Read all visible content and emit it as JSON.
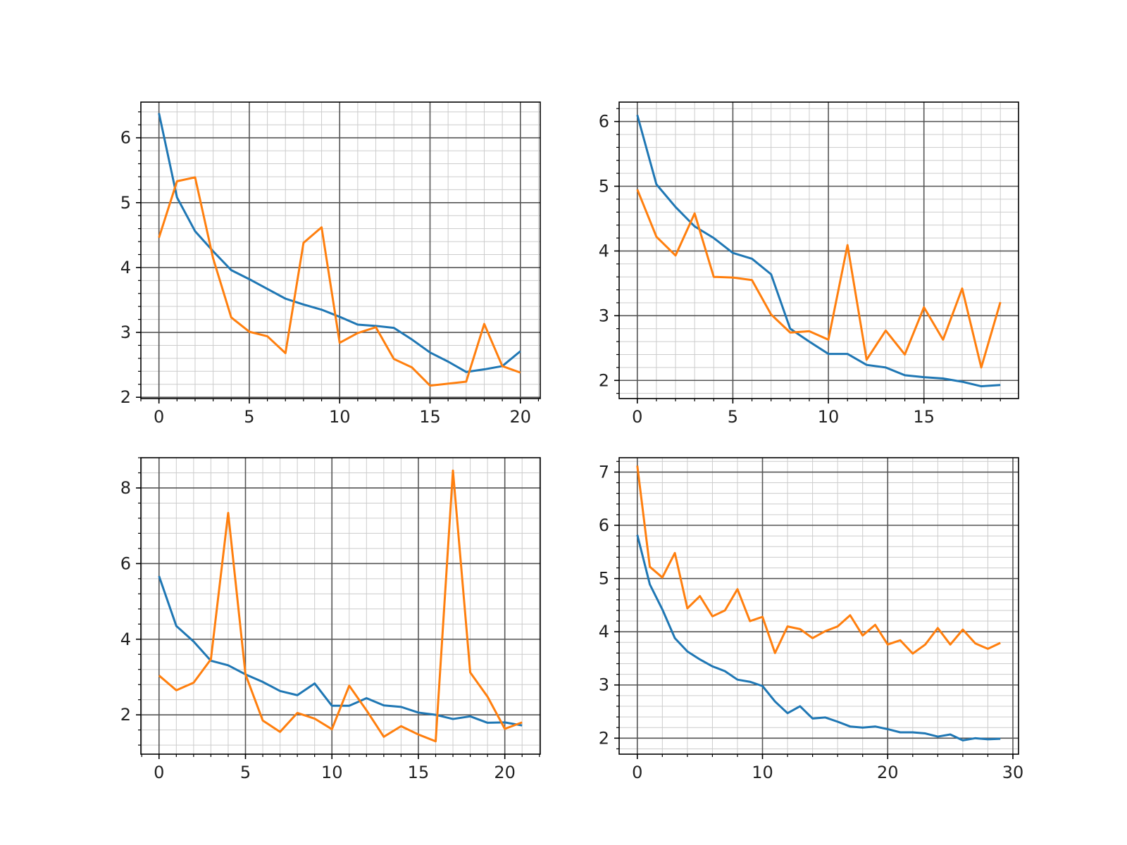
{
  "figure": {
    "background": "#ffffff",
    "colors": {
      "series_1": "#1f77b4",
      "series_2": "#ff7f0e",
      "major_grid": "#555555",
      "minor_grid": "#cccccc"
    }
  },
  "chart_data": [
    {
      "type": "line",
      "grid": {
        "major": true,
        "minor": true
      },
      "xlim": [
        -1,
        21.1
      ],
      "ylim": [
        1.98,
        6.55
      ],
      "xticks": [
        0,
        5,
        10,
        15,
        20
      ],
      "yticks": [
        2,
        3,
        4,
        5,
        6
      ],
      "xminor": 1,
      "yminor": 0.2,
      "series": [
        {
          "color": "#1f77b4",
          "x": [
            0,
            1,
            2,
            3,
            4,
            5,
            6,
            7,
            8,
            9,
            10,
            11,
            12,
            13,
            14,
            15,
            16,
            17,
            18,
            19,
            20
          ],
          "values": [
            6.38,
            5.08,
            4.56,
            4.25,
            3.96,
            3.82,
            3.67,
            3.52,
            3.43,
            3.35,
            3.24,
            3.12,
            3.1,
            3.07,
            2.89,
            2.69,
            2.55,
            2.39,
            2.43,
            2.48,
            2.71
          ]
        },
        {
          "color": "#ff7f0e",
          "x": [
            0,
            1,
            2,
            3,
            4,
            5,
            6,
            7,
            8,
            9,
            10,
            11,
            12,
            13,
            14,
            15,
            16,
            17,
            18,
            19,
            20
          ],
          "values": [
            4.46,
            5.33,
            5.39,
            4.14,
            3.23,
            3.01,
            2.94,
            2.68,
            4.38,
            4.62,
            2.84,
            2.99,
            3.08,
            2.59,
            2.46,
            2.18,
            2.21,
            2.24,
            3.13,
            2.48,
            2.38
          ]
        }
      ]
    },
    {
      "type": "line",
      "grid": {
        "major": true,
        "minor": true
      },
      "xlim": [
        -0.95,
        19.95
      ],
      "ylim": [
        1.72,
        6.3
      ],
      "xticks": [
        0,
        5,
        10,
        15
      ],
      "yticks": [
        2,
        3,
        4,
        5,
        6
      ],
      "xminor": 1,
      "yminor": 0.2,
      "series": [
        {
          "color": "#1f77b4",
          "x": [
            0,
            1,
            2,
            3,
            4,
            5,
            6,
            7,
            8,
            9,
            10,
            11,
            12,
            13,
            14,
            15,
            16,
            17,
            18,
            19
          ],
          "values": [
            6.1,
            5.03,
            4.68,
            4.38,
            4.2,
            3.97,
            3.88,
            3.64,
            2.8,
            2.6,
            2.41,
            2.41,
            2.24,
            2.2,
            2.08,
            2.05,
            2.03,
            1.98,
            1.91,
            1.93
          ]
        },
        {
          "color": "#ff7f0e",
          "x": [
            0,
            1,
            2,
            3,
            4,
            5,
            6,
            7,
            8,
            9,
            10,
            11,
            12,
            13,
            14,
            15,
            16,
            17,
            18,
            19
          ],
          "values": [
            4.95,
            4.22,
            3.93,
            4.58,
            3.6,
            3.59,
            3.55,
            3.02,
            2.74,
            2.76,
            2.63,
            4.09,
            2.32,
            2.77,
            2.4,
            3.13,
            2.63,
            3.42,
            2.2,
            3.21
          ]
        }
      ]
    },
    {
      "type": "line",
      "grid": {
        "major": true,
        "minor": true
      },
      "xlim": [
        -1.05,
        22.05
      ],
      "ylim": [
        0.96,
        8.8
      ],
      "xticks": [
        0,
        5,
        10,
        15,
        20
      ],
      "yticks": [
        2,
        4,
        6,
        8
      ],
      "xminor": 1,
      "yminor": 0.4,
      "series": [
        {
          "color": "#1f77b4",
          "x": [
            0,
            1,
            2,
            3,
            4,
            5,
            6,
            7,
            8,
            9,
            10,
            11,
            12,
            13,
            14,
            15,
            16,
            17,
            18,
            19,
            20,
            21
          ],
          "values": [
            5.67,
            4.35,
            3.94,
            3.43,
            3.31,
            3.07,
            2.87,
            2.63,
            2.52,
            2.83,
            2.24,
            2.24,
            2.44,
            2.25,
            2.21,
            2.06,
            2.0,
            1.89,
            1.96,
            1.79,
            1.8,
            1.72
          ]
        },
        {
          "color": "#ff7f0e",
          "x": [
            0,
            1,
            2,
            3,
            4,
            5,
            6,
            7,
            8,
            9,
            10,
            11,
            12,
            13,
            14,
            15,
            16,
            17,
            18,
            19,
            20,
            21
          ],
          "values": [
            3.04,
            2.65,
            2.85,
            3.47,
            7.34,
            3.07,
            1.85,
            1.55,
            2.05,
            1.9,
            1.62,
            2.77,
            2.12,
            1.42,
            1.7,
            1.48,
            1.3,
            8.46,
            3.12,
            2.48,
            1.63,
            1.8
          ]
        }
      ]
    },
    {
      "type": "line",
      "grid": {
        "major": true,
        "minor": true
      },
      "xlim": [
        -1.45,
        30.45
      ],
      "ylim": [
        1.7,
        7.27
      ],
      "xticks": [
        0,
        10,
        20,
        30
      ],
      "yticks": [
        2,
        3,
        4,
        5,
        6,
        7
      ],
      "xminor": 2,
      "yminor": 0.2,
      "series": [
        {
          "color": "#1f77b4",
          "x": [
            0,
            1,
            2,
            3,
            4,
            5,
            6,
            7,
            8,
            9,
            10,
            11,
            12,
            13,
            14,
            15,
            16,
            17,
            18,
            19,
            20,
            21,
            22,
            23,
            24,
            25,
            26,
            27,
            28,
            29
          ],
          "values": [
            5.82,
            4.89,
            4.42,
            3.88,
            3.63,
            3.48,
            3.35,
            3.26,
            3.1,
            3.06,
            2.98,
            2.69,
            2.47,
            2.6,
            2.37,
            2.39,
            2.31,
            2.22,
            2.2,
            2.22,
            2.17,
            2.11,
            2.11,
            2.09,
            2.03,
            2.07,
            1.96,
            2.0,
            1.98,
            1.99
          ]
        },
        {
          "color": "#ff7f0e",
          "x": [
            0,
            1,
            2,
            3,
            4,
            5,
            6,
            7,
            8,
            9,
            10,
            11,
            12,
            13,
            14,
            15,
            16,
            17,
            18,
            19,
            20,
            21,
            22,
            23,
            24,
            25,
            26,
            27,
            28,
            29
          ],
          "values": [
            7.12,
            5.22,
            5.02,
            5.48,
            4.44,
            4.67,
            4.29,
            4.4,
            4.8,
            4.2,
            4.28,
            3.6,
            4.1,
            4.05,
            3.88,
            4.01,
            4.1,
            4.31,
            3.93,
            4.13,
            3.76,
            3.84,
            3.59,
            3.76,
            4.07,
            3.76,
            4.04,
            3.78,
            3.68,
            3.79
          ]
        }
      ]
    }
  ]
}
